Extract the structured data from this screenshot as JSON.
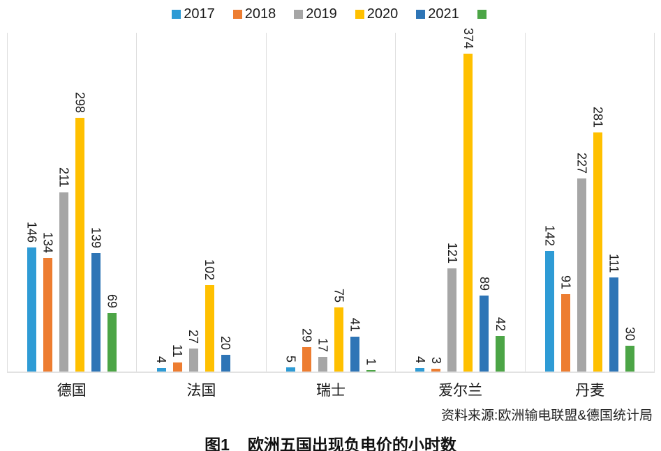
{
  "chart_data": {
    "type": "bar",
    "categories": [
      "德国",
      "法国",
      "瑞士",
      "爱尔兰",
      "丹麦"
    ],
    "series": [
      {
        "name": "2017",
        "color": "#2E9BD5",
        "values": [
          146,
          4,
          5,
          4,
          142
        ]
      },
      {
        "name": "2018",
        "color": "#ED7D31",
        "values": [
          134,
          11,
          29,
          3,
          91
        ]
      },
      {
        "name": "2019",
        "color": "#A6A6A6",
        "values": [
          211,
          27,
          17,
          121,
          227
        ]
      },
      {
        "name": "2020",
        "color": "#FFC000",
        "values": [
          298,
          102,
          75,
          374,
          281
        ]
      },
      {
        "name": "2021",
        "color": "#2E75B6",
        "values": [
          139,
          20,
          41,
          89,
          111
        ]
      },
      {
        "name": "",
        "color": "#4CA546",
        "values": [
          69,
          null,
          1,
          42,
          30
        ]
      }
    ],
    "title": "图1 欧洲五国出现负电价的小时数",
    "xlabel": "",
    "ylabel": "",
    "ylim": [
      0,
      400
    ],
    "grid": false,
    "legend_position": "top",
    "bar_labels": true,
    "panel_separators": true
  },
  "source_note": "资料来源:欧洲输电联盟&德国统计局",
  "caption": {
    "figure_label": "图1",
    "title": "欧洲五国出现负电价的小时数"
  }
}
